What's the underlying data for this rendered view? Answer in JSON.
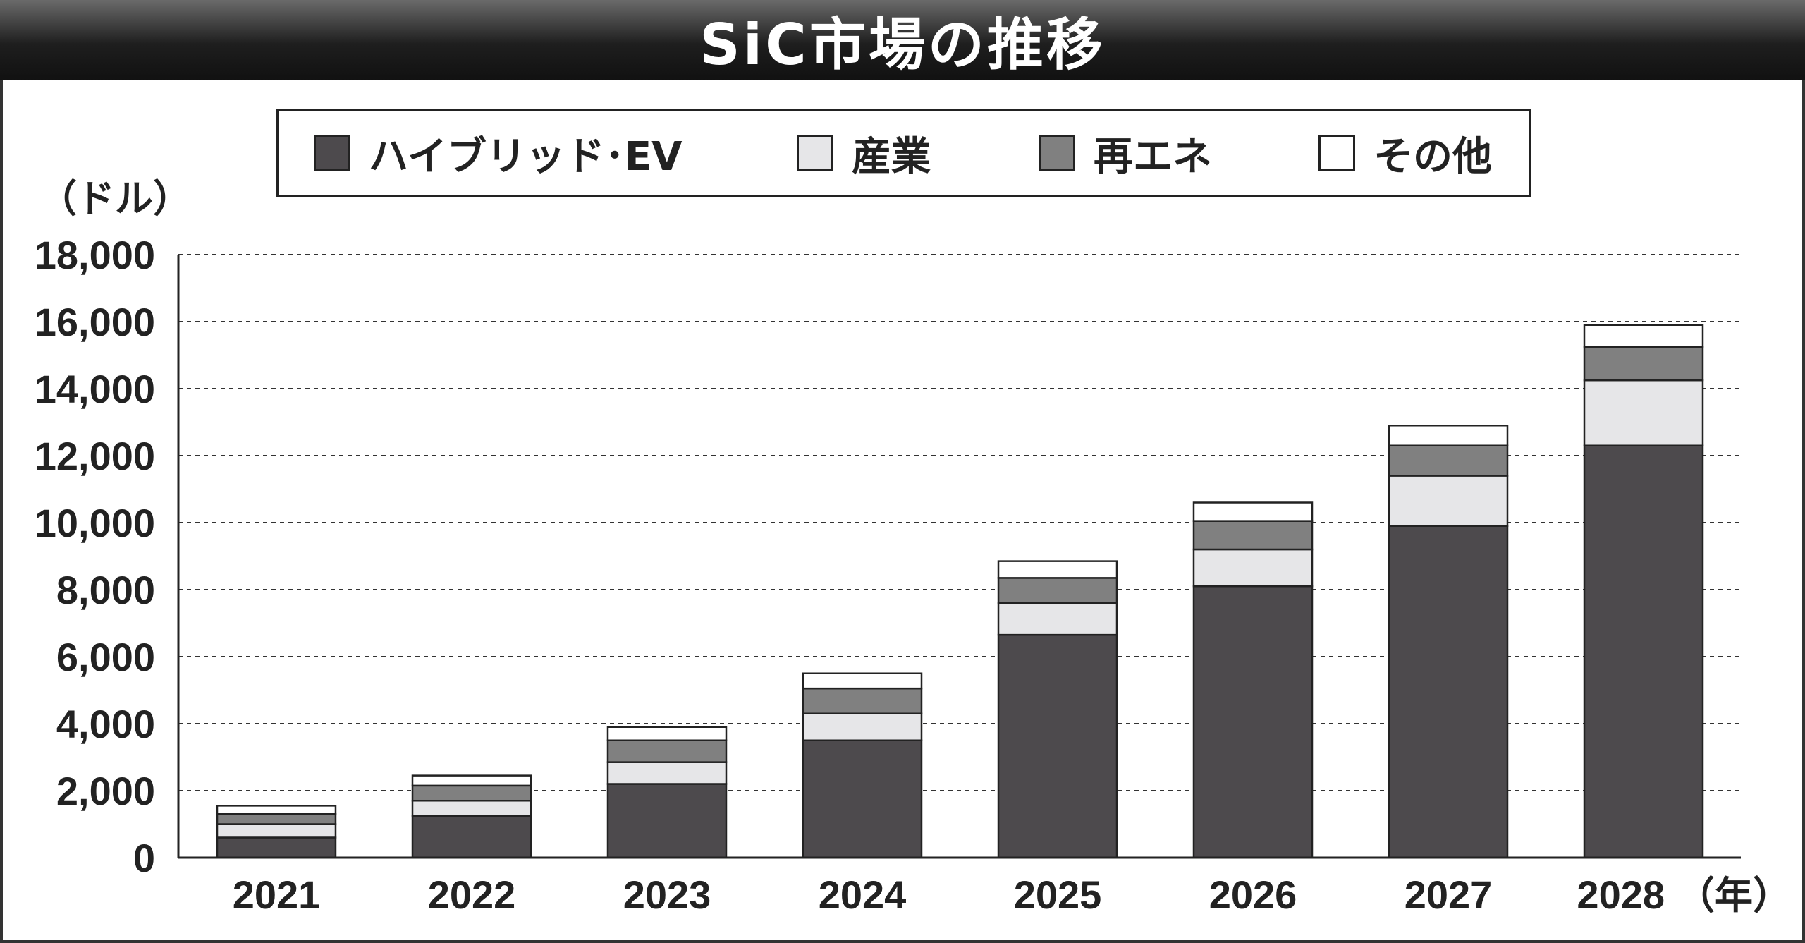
{
  "chart_data": {
    "type": "bar",
    "stacked": true,
    "title": "SiC市場の推移",
    "ylabel": "（ドル）",
    "xlabel": "（年）",
    "categories": [
      "2021",
      "2022",
      "2023",
      "2024",
      "2025",
      "2026",
      "2027",
      "2028"
    ],
    "series": [
      {
        "name": "ハイブリッド･EV",
        "color": "#4d4a4d",
        "values": [
          600,
          1250,
          2200,
          3500,
          6650,
          8100,
          9900,
          12300
        ]
      },
      {
        "name": "産業",
        "color": "#e6e6e8",
        "values": [
          400,
          450,
          650,
          800,
          950,
          1100,
          1500,
          1950
        ]
      },
      {
        "name": "再エネ",
        "color": "#808080",
        "values": [
          300,
          450,
          650,
          750,
          750,
          850,
          900,
          1000
        ]
      },
      {
        "name": "その他",
        "color": "#ffffff",
        "values": [
          250,
          300,
          400,
          450,
          500,
          550,
          600,
          650
        ]
      }
    ],
    "ylim": [
      0,
      18000
    ],
    "yticks": [
      0,
      2000,
      4000,
      6000,
      8000,
      10000,
      12000,
      14000,
      16000,
      18000
    ],
    "ytick_labels": [
      "0",
      "2,000",
      "4,000",
      "6,000",
      "8,000",
      "10,000",
      "12,000",
      "14,000",
      "16,000",
      "18,000"
    ],
    "grid": true,
    "legend_position": "top"
  }
}
